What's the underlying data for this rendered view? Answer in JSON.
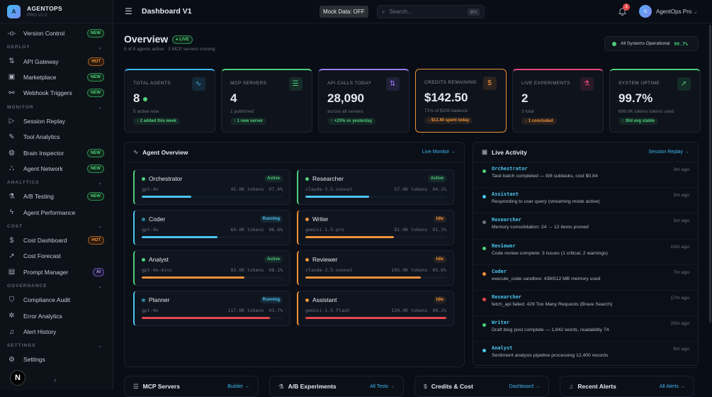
{
  "brand": {
    "initial": "A",
    "name": "AGENTOPS",
    "version": "PRO v1.0"
  },
  "sidebar": [
    {
      "type": "item",
      "label": "Version Control",
      "icon": "git-commit-icon",
      "glyph": "-o-",
      "badge": "NEW",
      "badge_type": "new"
    },
    {
      "type": "section",
      "label": "DEPLOY"
    },
    {
      "type": "item",
      "label": "API Gateway",
      "icon": "api-gateway-icon",
      "glyph": "⇅",
      "badge": "HOT",
      "badge_type": "hot"
    },
    {
      "type": "item",
      "label": "Marketplace",
      "icon": "shopping-bag-icon",
      "glyph": "▣",
      "badge": "NEW",
      "badge_type": "new"
    },
    {
      "type": "item",
      "label": "Webhook Triggers",
      "icon": "webhook-icon",
      "glyph": "⚯",
      "badge": "NEW",
      "badge_type": "new"
    },
    {
      "type": "section",
      "label": "MONITOR"
    },
    {
      "type": "item",
      "label": "Session Replay",
      "icon": "play-circle-icon",
      "glyph": "▷"
    },
    {
      "type": "item",
      "label": "Tool Analytics",
      "icon": "wrench-icon",
      "glyph": "✎"
    },
    {
      "type": "item",
      "label": "Brain Inspector",
      "icon": "brain-icon",
      "glyph": "◍",
      "badge": "NEW",
      "badge_type": "new"
    },
    {
      "type": "item",
      "label": "Agent Network",
      "icon": "network-icon",
      "glyph": "⛬",
      "badge": "NEW",
      "badge_type": "new"
    },
    {
      "type": "section",
      "label": "ANALYTICS"
    },
    {
      "type": "item",
      "label": "A/B Testing",
      "icon": "flask-icon",
      "glyph": "⚗",
      "badge": "NEW",
      "badge_type": "new"
    },
    {
      "type": "item",
      "label": "Agent Performance",
      "icon": "zap-icon",
      "glyph": "ϟ"
    },
    {
      "type": "section",
      "label": "COST"
    },
    {
      "type": "item",
      "label": "Cost Dashboard",
      "icon": "dollar-icon",
      "glyph": "$",
      "badge": "HOT",
      "badge_type": "hot"
    },
    {
      "type": "item",
      "label": "Cost Forecast",
      "icon": "trending-up-icon",
      "glyph": "↗"
    },
    {
      "type": "item",
      "label": "Prompt Manager",
      "icon": "file-text-icon",
      "glyph": "▤",
      "badge": "AI",
      "badge_type": "ai"
    },
    {
      "type": "section",
      "label": "GOVERNANCE"
    },
    {
      "type": "item",
      "label": "Compliance Audit",
      "icon": "shield-icon",
      "glyph": "⛉"
    },
    {
      "type": "item",
      "label": "Error Analytics",
      "icon": "bug-icon",
      "glyph": "✲"
    },
    {
      "type": "item",
      "label": "Alert History",
      "icon": "bell-icon",
      "glyph": "♫"
    },
    {
      "type": "section",
      "label": "SETTINGS"
    },
    {
      "type": "item",
      "label": "Settings",
      "icon": "gear-icon",
      "glyph": "⚙"
    }
  ],
  "topbar": {
    "title": "Dashboard V1",
    "mock": "Mock Data: OFF",
    "search_placeholder": "Search...",
    "shortcut": "⌘K",
    "notifications": "3",
    "user_initial": "S",
    "user": "AgentOps Pro"
  },
  "overview": {
    "title": "Overview",
    "live": "LIVE",
    "subtitle": "5 of 8 agents active · 3 MCP servers running",
    "status": "All Systems Operational",
    "status_pct": "99.7%"
  },
  "stats": [
    {
      "title": "TOTAL AGENTS",
      "value": "8",
      "sub": "5 active now",
      "change": "↑ 2 added this week",
      "trend": "up",
      "color": "#3fb6f0",
      "icon": "activity-icon",
      "glyph": "∿"
    },
    {
      "title": "MCP SERVERS",
      "value": "4",
      "sub": "1 published",
      "change": "↑ 1 new server",
      "trend": "up",
      "color": "#4ed07a",
      "icon": "server-icon",
      "glyph": "☰"
    },
    {
      "title": "API CALLS TODAY",
      "value": "28,090",
      "sub": "across all servers",
      "change": "↑ +23% vs yesterday",
      "trend": "up",
      "color": "#9b7af5",
      "icon": "api-icon",
      "glyph": "⇅"
    },
    {
      "title": "CREDITS REMAINING",
      "value": "$142.50",
      "sub": "71% of $200 balance",
      "change": "↓ $12.40 spent today",
      "trend": "down",
      "color": "#f0923a",
      "icon": "dollar-icon",
      "glyph": "$"
    },
    {
      "title": "LIVE EXPERIMENTS",
      "value": "2",
      "sub": "3 total",
      "change": "↓ 1 concluded",
      "trend": "down",
      "color": "#e5487a",
      "icon": "flask-icon",
      "glyph": "⚗"
    },
    {
      "title": "SYSTEM UPTIME",
      "value": "99.7%",
      "sub": "696.0K tokens tokens used",
      "change": "↑ 30d avg stable",
      "trend": "up",
      "color": "#4ed07a",
      "icon": "trending-up-icon",
      "glyph": "↗"
    }
  ],
  "agent_overview": {
    "title": "Agent Overview",
    "link": "Live Monitor →",
    "agents": [
      {
        "name": "Orchestrator",
        "status": "Active",
        "model": "gpt-4o",
        "tokens": "45.0K tokens",
        "pct": "97.4%",
        "usage": 0.35,
        "bar_color": "#4cc4ef"
      },
      {
        "name": "Researcher",
        "status": "Active",
        "model": "claude-3.5-sonnet",
        "tokens": "57.0K tokens",
        "pct": "94.2%",
        "usage": 0.45,
        "bar_color": "#4cc4ef"
      },
      {
        "name": "Coder",
        "status": "Running",
        "model": "gpt-4o",
        "tokens": "69.0K tokens",
        "pct": "96.8%",
        "usage": 0.54,
        "bar_color": "#4cc4ef"
      },
      {
        "name": "Writer",
        "status": "Idle",
        "model": "gemini-1.5-pro",
        "tokens": "81.0K tokens",
        "pct": "91.3%",
        "usage": 0.63,
        "bar_color": "#f0923a"
      },
      {
        "name": "Analyst",
        "status": "Active",
        "model": "gpt-4o-mini",
        "tokens": "93.0K tokens",
        "pct": "98.1%",
        "usage": 0.73,
        "bar_color": "#f0923a"
      },
      {
        "name": "Reviewer",
        "status": "Idle",
        "model": "claude-3.5-sonnet",
        "tokens": "105.0K tokens",
        "pct": "95.6%",
        "usage": 0.82,
        "bar_color": "#f0923a"
      },
      {
        "name": "Planner",
        "status": "Running",
        "model": "gpt-4o",
        "tokens": "117.0K tokens",
        "pct": "93.7%",
        "usage": 0.91,
        "bar_color": "#e5484d"
      },
      {
        "name": "Assistant",
        "status": "Idle",
        "model": "gemini-1.5-flash",
        "tokens": "129.0K tokens",
        "pct": "99.2%",
        "usage": 1.0,
        "bar_color": "#e5484d"
      }
    ]
  },
  "live_activity": {
    "title": "Live Activity",
    "link": "Session Replay →",
    "events": [
      {
        "agent": "Orchestrator",
        "msg": "Task batch completed — 8/8 subtasks, cost $0.84",
        "time": "3m ago",
        "color": "#4ed07a"
      },
      {
        "agent": "Assistant",
        "msg": "Responding to user query (streaming mode active)",
        "time": "2m ago",
        "color": "#4cc4ef"
      },
      {
        "agent": "Researcher",
        "msg": "Memory consolidation: 24 → 12 items pruned",
        "time": "1m ago",
        "color": "#6b7380"
      },
      {
        "agent": "Reviewer",
        "msg": "Code review complete: 3 issues (1 critical, 2 warnings)",
        "time": "10m ago",
        "color": "#4ed07a"
      },
      {
        "agent": "Coder",
        "msg": "execute_code sandbox: 438/512 MB memory used",
        "time": "7m ago",
        "color": "#f0923a"
      },
      {
        "agent": "Researcher",
        "msg": "fetch_api failed: 429 Too Many Requests (Brave Search)",
        "time": "17m ago",
        "color": "#e5484d"
      },
      {
        "agent": "Writer",
        "msg": "Draft blog post complete — 1,842 words, readability 74",
        "time": "20m ago",
        "color": "#4ed07a"
      },
      {
        "agent": "Analyst",
        "msg": "Sentiment analysis pipeline processing 12,400 records",
        "time": "5m ago",
        "color": "#4cc4ef"
      }
    ]
  },
  "bottom_panels": [
    {
      "title": "MCP Servers",
      "link": "Builder →",
      "icon": "server-icon",
      "glyph": "☰"
    },
    {
      "title": "A/B Experiments",
      "link": "All Tests →",
      "icon": "flask-icon",
      "glyph": "⚗"
    },
    {
      "title": "Credits & Cost",
      "link": "Dashboard →",
      "icon": "dollar-icon",
      "glyph": "$"
    },
    {
      "title": "Recent Alerts",
      "link": "All Alerts →",
      "icon": "bell-icon",
      "glyph": "♫"
    }
  ]
}
